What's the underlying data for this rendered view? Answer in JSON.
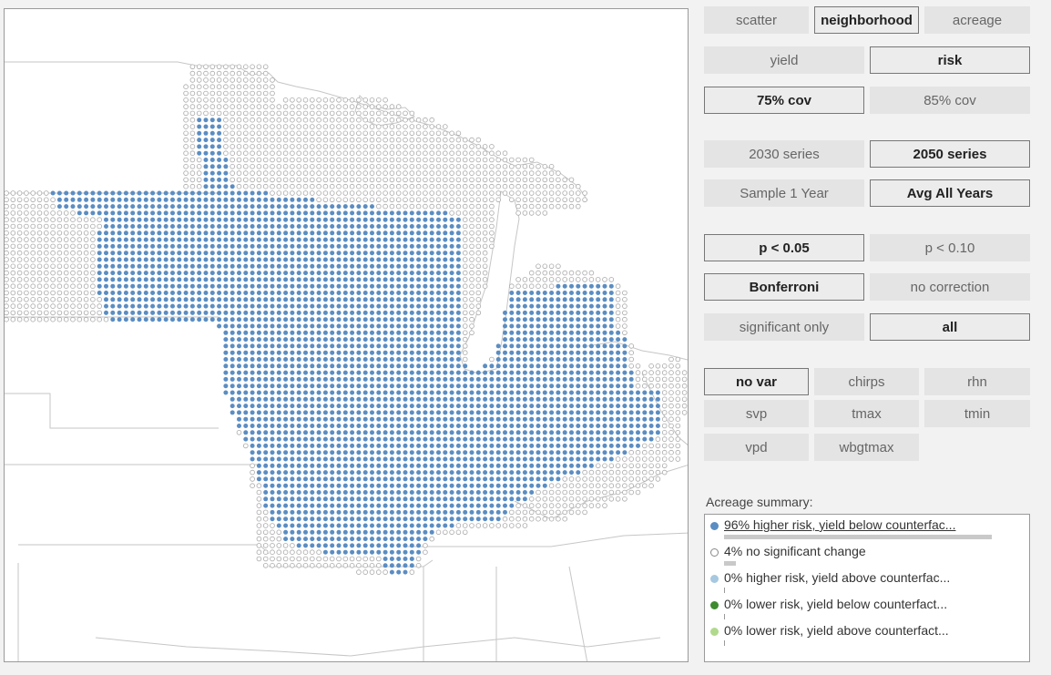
{
  "map": {
    "dot_colors": {
      "higher_risk_yield_below": "#5b8dc2",
      "no_significant_change": "#ffffff",
      "higher_risk_yield_above": "#a6c8e0",
      "lower_risk_yield_below": "#3e8a2e",
      "lower_risk_yield_above": "#b1d98c"
    }
  },
  "controls": {
    "view_scatter": "scatter",
    "view_neighborhood": "neighborhood",
    "view_acreage": "acreage",
    "metric_yield": "yield",
    "metric_risk": "risk",
    "coverage_75": "75% cov",
    "coverage_85": "85% cov",
    "series_2030": "2030 series",
    "series_2050": "2050 series",
    "sample_1_year": "Sample 1 Year",
    "avg_all_years": "Avg All Years",
    "p_005": "p < 0.05",
    "p_010": "p < 0.10",
    "bonferroni": "Bonferroni",
    "no_correction": "no correction",
    "significant_only": "significant only",
    "all": "all",
    "var_no_var": "no var",
    "var_chirps": "chirps",
    "var_rhn": "rhn",
    "var_svp": "svp",
    "var_tmax": "tmax",
    "var_tmin": "tmin",
    "var_vpd": "vpd",
    "var_wbgtmax": "wbgtmax"
  },
  "active_selections": [
    "neighborhood",
    "risk",
    "75% cov",
    "2050 series",
    "Avg All Years",
    "p < 0.05",
    "Bonferroni",
    "all",
    "no var"
  ],
  "summary": {
    "title": "Acreage summary:",
    "items": [
      {
        "label": "96% higher risk, yield below counterfac...",
        "percent": 96,
        "color": "#5b8dc2"
      },
      {
        "label": "4% no significant change",
        "percent": 4,
        "color": "#ffffff"
      },
      {
        "label": "0% higher risk, yield above counterfac...",
        "percent": 0,
        "color": "#a6c8e0"
      },
      {
        "label": "0% lower risk, yield below counterfact...",
        "percent": 0,
        "color": "#3e8a2e"
      },
      {
        "label": "0% lower risk, yield above counterfact...",
        "percent": 0,
        "color": "#b1d98c"
      }
    ]
  }
}
